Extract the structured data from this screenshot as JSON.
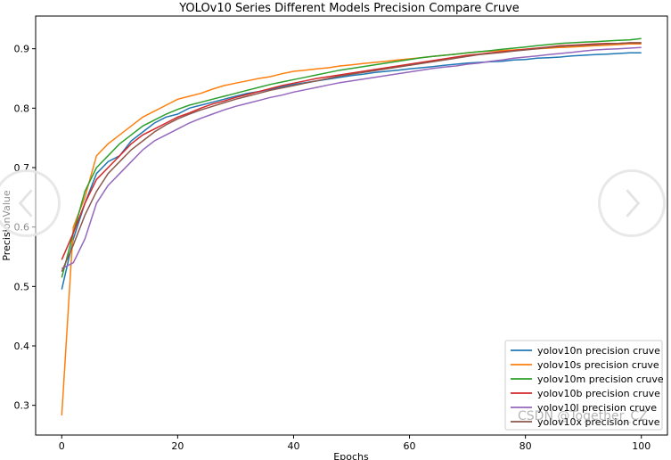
{
  "watermark": "CSDN @Together_CZ",
  "nav": {
    "prev_icon": "chevron-left-icon",
    "next_icon": "chevron-right-icon"
  },
  "chart_data": {
    "type": "line",
    "title": "YOLOv10 Series Different Models Precision Compare Cruve",
    "xlabel": "Epochs",
    "ylabel": "PrecisionValue",
    "xlim": [
      -4.5,
      104.5
    ],
    "ylim": [
      0.25,
      0.955
    ],
    "xticks": [
      0,
      20,
      40,
      60,
      80,
      100
    ],
    "yticks": [
      0.3,
      0.4,
      0.5,
      0.6,
      0.7,
      0.8,
      0.9
    ],
    "grid": false,
    "legend_position": "lower-right",
    "x": [
      0,
      2,
      4,
      6,
      8,
      10,
      12,
      14,
      16,
      18,
      20,
      22,
      24,
      26,
      28,
      30,
      32,
      34,
      36,
      38,
      40,
      42,
      44,
      46,
      48,
      50,
      52,
      54,
      56,
      58,
      60,
      62,
      64,
      66,
      68,
      70,
      72,
      74,
      76,
      78,
      80,
      82,
      84,
      86,
      88,
      90,
      92,
      94,
      96,
      98,
      100
    ],
    "series": [
      {
        "name": "yolov10n precision cruve",
        "color": "#1f77b4",
        "values": [
          0.495,
          0.58,
          0.64,
          0.69,
          0.71,
          0.72,
          0.745,
          0.76,
          0.775,
          0.785,
          0.79,
          0.8,
          0.805,
          0.81,
          0.815,
          0.82,
          0.825,
          0.828,
          0.832,
          0.836,
          0.84,
          0.843,
          0.846,
          0.849,
          0.852,
          0.855,
          0.857,
          0.86,
          0.862,
          0.864,
          0.866,
          0.868,
          0.87,
          0.872,
          0.874,
          0.876,
          0.877,
          0.878,
          0.879,
          0.881,
          0.882,
          0.884,
          0.885,
          0.886,
          0.888,
          0.889,
          0.89,
          0.891,
          0.892,
          0.893,
          0.893
        ]
      },
      {
        "name": "yolov10s precision cruve",
        "color": "#ff7f0e",
        "values": [
          0.283,
          0.6,
          0.65,
          0.72,
          0.74,
          0.755,
          0.77,
          0.785,
          0.795,
          0.805,
          0.815,
          0.82,
          0.825,
          0.832,
          0.838,
          0.842,
          0.846,
          0.85,
          0.853,
          0.858,
          0.862,
          0.864,
          0.866,
          0.868,
          0.871,
          0.873,
          0.875,
          0.877,
          0.879,
          0.881,
          0.883,
          0.885,
          0.887,
          0.889,
          0.891,
          0.893,
          0.895,
          0.896,
          0.897,
          0.898,
          0.899,
          0.9,
          0.901,
          0.902,
          0.903,
          0.904,
          0.905,
          0.906,
          0.907,
          0.908,
          0.908
        ]
      },
      {
        "name": "yolov10m precision cruve",
        "color": "#2ca02c",
        "values": [
          0.515,
          0.59,
          0.66,
          0.7,
          0.72,
          0.74,
          0.755,
          0.77,
          0.78,
          0.79,
          0.798,
          0.805,
          0.81,
          0.815,
          0.82,
          0.825,
          0.83,
          0.835,
          0.84,
          0.844,
          0.848,
          0.852,
          0.856,
          0.86,
          0.864,
          0.867,
          0.87,
          0.873,
          0.876,
          0.879,
          0.882,
          0.885,
          0.887,
          0.889,
          0.891,
          0.893,
          0.895,
          0.897,
          0.899,
          0.901,
          0.903,
          0.905,
          0.907,
          0.909,
          0.91,
          0.911,
          0.912,
          0.913,
          0.914,
          0.915,
          0.917
        ]
      },
      {
        "name": "yolov10b precision cruve",
        "color": "#d62728",
        "values": [
          0.545,
          0.59,
          0.64,
          0.68,
          0.7,
          0.72,
          0.74,
          0.755,
          0.765,
          0.775,
          0.785,
          0.792,
          0.8,
          0.807,
          0.812,
          0.818,
          0.823,
          0.828,
          0.833,
          0.838,
          0.842,
          0.846,
          0.85,
          0.853,
          0.856,
          0.859,
          0.862,
          0.865,
          0.868,
          0.871,
          0.874,
          0.877,
          0.88,
          0.883,
          0.886,
          0.889,
          0.891,
          0.893,
          0.895,
          0.897,
          0.899,
          0.901,
          0.903,
          0.905,
          0.906,
          0.907,
          0.908,
          0.909,
          0.909,
          0.91,
          0.91
        ]
      },
      {
        "name": "yolov10l precision cruve",
        "color": "#9467bd",
        "values": [
          0.53,
          0.54,
          0.58,
          0.64,
          0.67,
          0.69,
          0.71,
          0.73,
          0.745,
          0.755,
          0.765,
          0.775,
          0.783,
          0.79,
          0.797,
          0.803,
          0.808,
          0.813,
          0.818,
          0.822,
          0.827,
          0.831,
          0.835,
          0.839,
          0.843,
          0.846,
          0.849,
          0.852,
          0.855,
          0.858,
          0.861,
          0.864,
          0.867,
          0.869,
          0.871,
          0.874,
          0.876,
          0.879,
          0.881,
          0.884,
          0.886,
          0.888,
          0.89,
          0.892,
          0.894,
          0.896,
          0.898,
          0.899,
          0.9,
          0.901,
          0.902
        ]
      },
      {
        "name": "yolov10x precision cruve",
        "color": "#8c564b",
        "values": [
          0.525,
          0.57,
          0.62,
          0.66,
          0.69,
          0.71,
          0.73,
          0.745,
          0.76,
          0.772,
          0.782,
          0.79,
          0.797,
          0.803,
          0.809,
          0.815,
          0.82,
          0.825,
          0.83,
          0.834,
          0.838,
          0.842,
          0.846,
          0.85,
          0.854,
          0.857,
          0.86,
          0.863,
          0.866,
          0.869,
          0.872,
          0.875,
          0.878,
          0.881,
          0.884,
          0.887,
          0.89,
          0.892,
          0.894,
          0.896,
          0.898,
          0.9,
          0.902,
          0.904,
          0.905,
          0.906,
          0.907,
          0.908,
          0.909,
          0.91,
          0.91
        ]
      }
    ]
  }
}
